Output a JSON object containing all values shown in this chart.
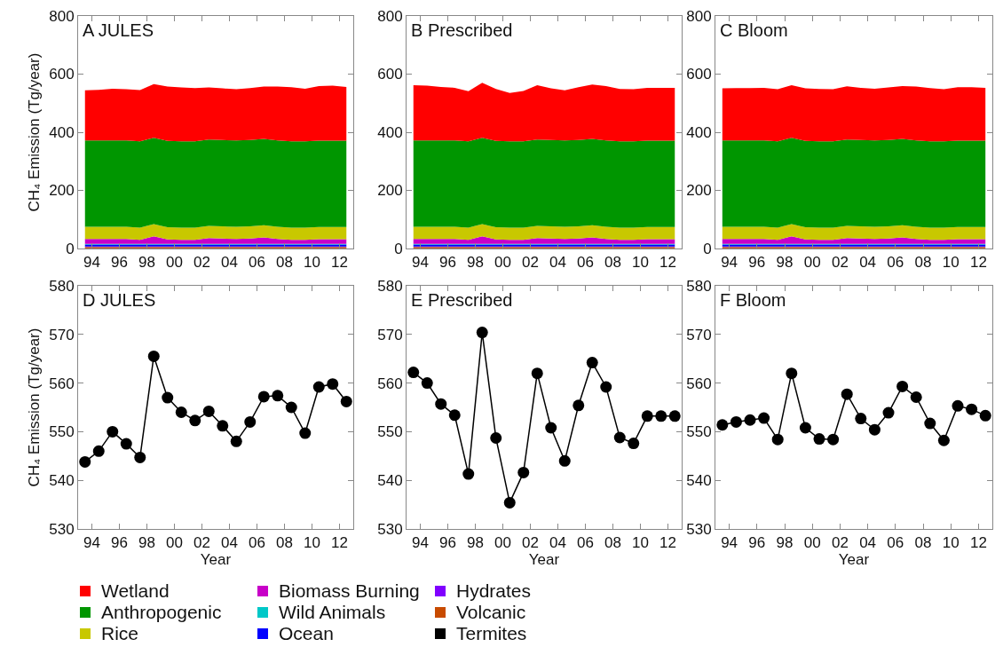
{
  "chart_data": [
    {
      "type": "area",
      "stacked": true,
      "title": "A JULES",
      "ylabel": "CH₄ Emission (Tg/year)",
      "legend": "bottom",
      "x": [
        1993.5,
        1994.5,
        1995.5,
        1996.5,
        1997.5,
        1998.5,
        1999.5,
        2000.5,
        2001.5,
        2002.5,
        2003.5,
        2004.5,
        2005.5,
        2006.5,
        2007.5,
        2008.5,
        2009.5,
        2010.5,
        2011.5,
        2012.5
      ],
      "xlim": [
        1993,
        2013
      ],
      "xticks": [
        {
          "value": 1994,
          "label": "94"
        },
        {
          "value": 1996,
          "label": "96"
        },
        {
          "value": 1998,
          "label": "98"
        },
        {
          "value": 2000,
          "label": "00"
        },
        {
          "value": 2002,
          "label": "02"
        },
        {
          "value": 2004,
          "label": "04"
        },
        {
          "value": 2006,
          "label": "06"
        },
        {
          "value": 2008,
          "label": "08"
        },
        {
          "value": 2010,
          "label": "10"
        },
        {
          "value": 2012,
          "label": "12"
        }
      ],
      "ylim": [
        0,
        800
      ],
      "yticks": [
        0,
        200,
        400,
        600,
        800
      ],
      "series": [
        {
          "name": "Termites",
          "color": "#000000",
          "values": [
            1,
            1,
            1,
            1,
            1,
            1,
            1,
            1,
            1,
            1,
            1,
            1,
            1,
            1,
            1,
            1,
            1,
            1,
            1,
            1
          ]
        },
        {
          "name": "Volcanic",
          "color": "#c84b00",
          "values": [
            4,
            4,
            4,
            4,
            4,
            4,
            4,
            4,
            4,
            4,
            4,
            4,
            4,
            4,
            4,
            4,
            4,
            4,
            4,
            4
          ]
        },
        {
          "name": "Hydrates",
          "color": "#8000ff",
          "values": [
            2,
            2,
            2,
            2,
            2,
            2,
            2,
            2,
            2,
            2,
            2,
            2,
            2,
            2,
            2,
            2,
            2,
            2,
            2,
            2
          ]
        },
        {
          "name": "Ocean",
          "color": "#0000ff",
          "values": [
            7,
            7,
            7,
            7,
            7,
            7,
            7,
            7,
            7,
            7,
            7,
            7,
            7,
            7,
            7,
            7,
            7,
            7,
            7,
            7
          ]
        },
        {
          "name": "Wild Animals",
          "color": "#00c8c8",
          "values": [
            2,
            2,
            2,
            2,
            2,
            2,
            2,
            2,
            2,
            2,
            2,
            2,
            2,
            2,
            2,
            2,
            2,
            2,
            2,
            2
          ]
        },
        {
          "name": "Biomass Burning",
          "color": "#c800c8",
          "values": [
            17,
            17,
            17,
            17,
            14,
            26,
            15,
            14,
            14,
            20,
            18,
            17,
            18,
            22,
            17,
            14,
            14,
            16,
            16,
            16
          ]
        },
        {
          "name": "Rice",
          "color": "#c8c800",
          "values": [
            42,
            42,
            42,
            42,
            42,
            42,
            42,
            42,
            42,
            42,
            42,
            42,
            42,
            42,
            42,
            42,
            42,
            42,
            42,
            42
          ]
        },
        {
          "name": "Anthropogenic",
          "color": "#009600",
          "values": [
            297,
            297,
            297,
            297,
            297,
            297,
            297,
            297,
            297,
            297,
            297,
            297,
            297,
            297,
            297,
            297,
            297,
            297,
            297,
            297
          ]
        },
        {
          "name": "Wetland",
          "color": "#ff0000",
          "values": [
            172,
            174,
            178,
            176,
            176,
            185,
            187,
            185,
            183,
            179,
            178,
            176,
            179,
            180,
            185,
            186,
            181,
            188,
            189,
            185
          ]
        }
      ]
    },
    {
      "type": "area",
      "stacked": true,
      "title": "B Prescribed",
      "x": [
        1993.5,
        1994.5,
        1995.5,
        1996.5,
        1997.5,
        1998.5,
        1999.5,
        2000.5,
        2001.5,
        2002.5,
        2003.5,
        2004.5,
        2005.5,
        2006.5,
        2007.5,
        2008.5,
        2009.5,
        2010.5,
        2011.5,
        2012.5
      ],
      "xlim": [
        1993,
        2013
      ],
      "xticks": [
        {
          "value": 1994,
          "label": "94"
        },
        {
          "value": 1996,
          "label": "96"
        },
        {
          "value": 1998,
          "label": "98"
        },
        {
          "value": 2000,
          "label": "00"
        },
        {
          "value": 2002,
          "label": "02"
        },
        {
          "value": 2004,
          "label": "04"
        },
        {
          "value": 2006,
          "label": "06"
        },
        {
          "value": 2008,
          "label": "08"
        },
        {
          "value": 2010,
          "label": "10"
        },
        {
          "value": 2012,
          "label": "12"
        }
      ],
      "ylim": [
        0,
        800
      ],
      "yticks": [
        0,
        200,
        400,
        600,
        800
      ],
      "series": [
        {
          "color": "#000000",
          "values": [
            1,
            1,
            1,
            1,
            1,
            1,
            1,
            1,
            1,
            1,
            1,
            1,
            1,
            1,
            1,
            1,
            1,
            1,
            1,
            1
          ]
        },
        {
          "color": "#c84b00",
          "values": [
            4,
            4,
            4,
            4,
            4,
            4,
            4,
            4,
            4,
            4,
            4,
            4,
            4,
            4,
            4,
            4,
            4,
            4,
            4,
            4
          ]
        },
        {
          "color": "#8000ff",
          "values": [
            2,
            2,
            2,
            2,
            2,
            2,
            2,
            2,
            2,
            2,
            2,
            2,
            2,
            2,
            2,
            2,
            2,
            2,
            2,
            2
          ]
        },
        {
          "color": "#0000ff",
          "values": [
            7,
            7,
            7,
            7,
            7,
            7,
            7,
            7,
            7,
            7,
            7,
            7,
            7,
            7,
            7,
            7,
            7,
            7,
            7,
            7
          ]
        },
        {
          "color": "#00c8c8",
          "values": [
            2,
            2,
            2,
            2,
            2,
            2,
            2,
            2,
            2,
            2,
            2,
            2,
            2,
            2,
            2,
            2,
            2,
            2,
            2,
            2
          ]
        },
        {
          "color": "#c800c8",
          "values": [
            17,
            17,
            17,
            17,
            14,
            26,
            15,
            14,
            14,
            20,
            18,
            17,
            18,
            22,
            17,
            14,
            14,
            16,
            16,
            16
          ]
        },
        {
          "color": "#c8c800",
          "values": [
            42,
            42,
            42,
            42,
            42,
            42,
            42,
            42,
            42,
            42,
            42,
            42,
            42,
            42,
            42,
            42,
            42,
            42,
            42,
            42
          ]
        },
        {
          "color": "#009600",
          "values": [
            297,
            297,
            297,
            297,
            297,
            297,
            297,
            297,
            297,
            297,
            297,
            297,
            297,
            297,
            297,
            297,
            297,
            297,
            297,
            297
          ]
        },
        {
          "color": "#ff0000",
          "values": [
            190,
            188,
            184,
            181,
            172,
            189,
            179,
            166,
            173,
            187,
            178,
            172,
            182,
            187,
            187,
            180,
            179,
            182,
            182,
            182
          ]
        }
      ]
    },
    {
      "type": "area",
      "stacked": true,
      "title": "C Bloom",
      "x": [
        1993.5,
        1994.5,
        1995.5,
        1996.5,
        1997.5,
        1998.5,
        1999.5,
        2000.5,
        2001.5,
        2002.5,
        2003.5,
        2004.5,
        2005.5,
        2006.5,
        2007.5,
        2008.5,
        2009.5,
        2010.5,
        2011.5,
        2012.5
      ],
      "xlim": [
        1993,
        2013
      ],
      "xticks": [
        {
          "value": 1994,
          "label": "94"
        },
        {
          "value": 1996,
          "label": "96"
        },
        {
          "value": 1998,
          "label": "98"
        },
        {
          "value": 2000,
          "label": "00"
        },
        {
          "value": 2002,
          "label": "02"
        },
        {
          "value": 2004,
          "label": "04"
        },
        {
          "value": 2006,
          "label": "06"
        },
        {
          "value": 2008,
          "label": "08"
        },
        {
          "value": 2010,
          "label": "10"
        },
        {
          "value": 2012,
          "label": "12"
        }
      ],
      "ylim": [
        0,
        800
      ],
      "yticks": [
        0,
        200,
        400,
        600,
        800
      ],
      "series": [
        {
          "color": "#000000",
          "values": [
            1,
            1,
            1,
            1,
            1,
            1,
            1,
            1,
            1,
            1,
            1,
            1,
            1,
            1,
            1,
            1,
            1,
            1,
            1,
            1
          ]
        },
        {
          "color": "#c84b00",
          "values": [
            4,
            4,
            4,
            4,
            4,
            4,
            4,
            4,
            4,
            4,
            4,
            4,
            4,
            4,
            4,
            4,
            4,
            4,
            4,
            4
          ]
        },
        {
          "color": "#8000ff",
          "values": [
            2,
            2,
            2,
            2,
            2,
            2,
            2,
            2,
            2,
            2,
            2,
            2,
            2,
            2,
            2,
            2,
            2,
            2,
            2,
            2
          ]
        },
        {
          "color": "#0000ff",
          "values": [
            7,
            7,
            7,
            7,
            7,
            7,
            7,
            7,
            7,
            7,
            7,
            7,
            7,
            7,
            7,
            7,
            7,
            7,
            7,
            7
          ]
        },
        {
          "color": "#00c8c8",
          "values": [
            2,
            2,
            2,
            2,
            2,
            2,
            2,
            2,
            2,
            2,
            2,
            2,
            2,
            2,
            2,
            2,
            2,
            2,
            2,
            2
          ]
        },
        {
          "color": "#c800c8",
          "values": [
            17,
            17,
            17,
            17,
            14,
            26,
            15,
            14,
            14,
            20,
            18,
            17,
            18,
            22,
            17,
            14,
            14,
            16,
            16,
            16
          ]
        },
        {
          "color": "#c8c800",
          "values": [
            42,
            42,
            42,
            42,
            42,
            42,
            42,
            42,
            42,
            42,
            42,
            42,
            42,
            42,
            42,
            42,
            42,
            42,
            42,
            42
          ]
        },
        {
          "color": "#009600",
          "values": [
            297,
            297,
            297,
            297,
            297,
            297,
            297,
            297,
            297,
            297,
            297,
            297,
            297,
            297,
            297,
            297,
            297,
            297,
            297,
            297
          ]
        },
        {
          "color": "#ff0000",
          "values": [
            179,
            180,
            180,
            181,
            179,
            181,
            181,
            180,
            179,
            183,
            180,
            178,
            181,
            182,
            185,
            183,
            179,
            184,
            184,
            182
          ]
        }
      ]
    },
    {
      "type": "line",
      "title": "D JULES",
      "ylabel": "CH₄ Emission (Tg/year)",
      "xlabel": "Year",
      "marker": "circle",
      "line_style": "solid",
      "x": [
        1993.5,
        1994.5,
        1995.5,
        1996.5,
        1997.5,
        1998.5,
        1999.5,
        2000.5,
        2001.5,
        2002.5,
        2003.5,
        2004.5,
        2005.5,
        2006.5,
        2007.5,
        2008.5,
        2009.5,
        2010.5,
        2011.5,
        2012.5
      ],
      "xlim": [
        1993,
        2013
      ],
      "xticks": [
        {
          "value": 1994,
          "label": "94"
        },
        {
          "value": 1996,
          "label": "96"
        },
        {
          "value": 1998,
          "label": "98"
        },
        {
          "value": 2000,
          "label": "00"
        },
        {
          "value": 2002,
          "label": "02"
        },
        {
          "value": 2004,
          "label": "04"
        },
        {
          "value": 2006,
          "label": "06"
        },
        {
          "value": 2008,
          "label": "08"
        },
        {
          "value": 2010,
          "label": "10"
        },
        {
          "value": 2012,
          "label": "12"
        }
      ],
      "ylim": [
        530,
        580
      ],
      "yticks": [
        530,
        540,
        550,
        560,
        570,
        580
      ],
      "series": [
        {
          "color": "#000000",
          "values": [
            543.8,
            546,
            550,
            547.5,
            544.7,
            565.5,
            557,
            554,
            552.3,
            554.2,
            551.2,
            548,
            552,
            557.2,
            557.4,
            555,
            549.7,
            559.2,
            559.8,
            556.2
          ]
        }
      ]
    },
    {
      "type": "line",
      "title": "E Prescribed",
      "xlabel": "Year",
      "marker": "circle",
      "line_style": "solid",
      "x": [
        1993.5,
        1994.5,
        1995.5,
        1996.5,
        1997.5,
        1998.5,
        1999.5,
        2000.5,
        2001.5,
        2002.5,
        2003.5,
        2004.5,
        2005.5,
        2006.5,
        2007.5,
        2008.5,
        2009.5,
        2010.5,
        2011.5,
        2012.5
      ],
      "xlim": [
        1993,
        2013
      ],
      "xticks": [
        {
          "value": 1994,
          "label": "94"
        },
        {
          "value": 1996,
          "label": "96"
        },
        {
          "value": 1998,
          "label": "98"
        },
        {
          "value": 2000,
          "label": "00"
        },
        {
          "value": 2002,
          "label": "02"
        },
        {
          "value": 2004,
          "label": "04"
        },
        {
          "value": 2006,
          "label": "06"
        },
        {
          "value": 2008,
          "label": "08"
        },
        {
          "value": 2010,
          "label": "10"
        },
        {
          "value": 2012,
          "label": "12"
        }
      ],
      "ylim": [
        530,
        580
      ],
      "yticks": [
        530,
        540,
        550,
        560,
        570,
        580
      ],
      "series": [
        {
          "color": "#000000",
          "values": [
            562.2,
            560,
            555.7,
            553.4,
            541.3,
            570.4,
            548.7,
            535.4,
            541.6,
            562,
            550.8,
            544,
            555.4,
            564.2,
            559.2,
            548.8,
            547.6,
            553.2,
            553.2,
            553.2
          ]
        }
      ]
    },
    {
      "type": "line",
      "title": "F Bloom",
      "xlabel": "Year",
      "marker": "circle",
      "line_style": "solid",
      "x": [
        1993.5,
        1994.5,
        1995.5,
        1996.5,
        1997.5,
        1998.5,
        1999.5,
        2000.5,
        2001.5,
        2002.5,
        2003.5,
        2004.5,
        2005.5,
        2006.5,
        2007.5,
        2008.5,
        2009.5,
        2010.5,
        2011.5,
        2012.5
      ],
      "xlim": [
        1993,
        2013
      ],
      "xticks": [
        {
          "value": 1994,
          "label": "94"
        },
        {
          "value": 1996,
          "label": "96"
        },
        {
          "value": 1998,
          "label": "98"
        },
        {
          "value": 2000,
          "label": "00"
        },
        {
          "value": 2002,
          "label": "02"
        },
        {
          "value": 2004,
          "label": "04"
        },
        {
          "value": 2006,
          "label": "06"
        },
        {
          "value": 2008,
          "label": "08"
        },
        {
          "value": 2010,
          "label": "10"
        },
        {
          "value": 2012,
          "label": "12"
        }
      ],
      "ylim": [
        530,
        580
      ],
      "yticks": [
        530,
        540,
        550,
        560,
        570,
        580
      ],
      "series": [
        {
          "color": "#000000",
          "values": [
            551.4,
            552,
            552.4,
            552.8,
            548.4,
            562,
            550.8,
            548.5,
            548.4,
            557.7,
            552.7,
            550.4,
            553.9,
            559.3,
            557.1,
            551.7,
            548.2,
            555.3,
            554.6,
            553.3
          ]
        }
      ]
    }
  ]
}
